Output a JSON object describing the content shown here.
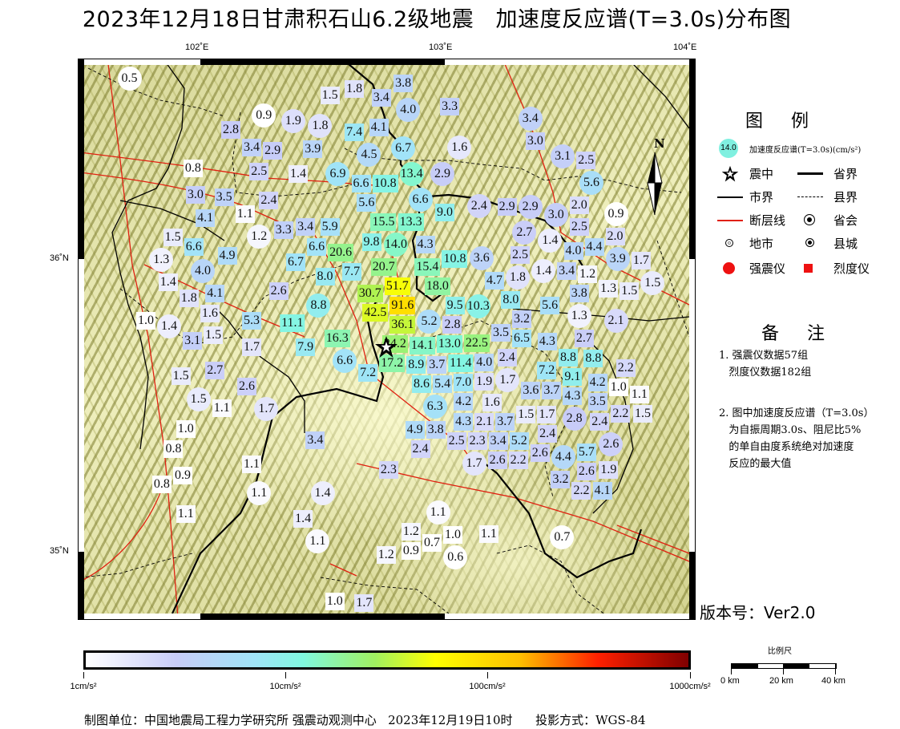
{
  "title": "2023年12月18日甘肃积石山6.2级地震   加速度反应谱(T=3.0s)分布图",
  "axes": {
    "lon_ticks": [
      "102˚E",
      "103˚E",
      "104˚E"
    ],
    "lat_ticks": [
      "36˚N",
      "35˚N"
    ]
  },
  "map": {
    "extent": {
      "lon": [
        101.5,
        104.03
      ],
      "lat": [
        34.77,
        36.69
      ]
    },
    "epicenter": {
      "lon": 102.76,
      "lat": 35.7
    },
    "stations": [
      [
        101.71,
        36.64,
        "0.5",
        "c"
      ],
      [
        102.26,
        36.49,
        "0.9",
        "c"
      ],
      [
        102.38,
        36.47,
        "1.9",
        "c"
      ],
      [
        102.49,
        36.45,
        "1.8",
        "c"
      ],
      [
        102.13,
        36.44,
        "2.8",
        "s"
      ],
      [
        102.21,
        36.38,
        "3.4",
        "s"
      ],
      [
        102.29,
        36.37,
        "2.9",
        "s"
      ],
      [
        102.46,
        36.38,
        "3.9",
        "s"
      ],
      [
        101.97,
        36.31,
        "0.8",
        "s"
      ],
      [
        102.24,
        36.3,
        "2.5",
        "s"
      ],
      [
        102.4,
        36.29,
        "1.4",
        "s"
      ],
      [
        101.98,
        36.22,
        "3.0",
        "s"
      ],
      [
        102.1,
        36.21,
        "3.5",
        "s"
      ],
      [
        102.28,
        36.2,
        "2.4",
        "s"
      ],
      [
        102.02,
        36.14,
        "4.1",
        "s"
      ],
      [
        102.18,
        36.15,
        "1.1",
        "s"
      ],
      [
        102.24,
        36.08,
        "1.2",
        "c"
      ],
      [
        102.34,
        36.1,
        "3.3",
        "s"
      ],
      [
        102.43,
        36.11,
        "3.4",
        "s"
      ],
      [
        101.9,
        36.06,
        "1.5",
        "s"
      ],
      [
        101.96,
        36.04,
        "6.6",
        "s"
      ],
      [
        101.84,
        36.0,
        "1.3",
        "c"
      ],
      [
        102.11,
        36.01,
        "4.9",
        "s"
      ],
      [
        102.53,
        36.56,
        "1.5",
        "s"
      ],
      [
        102.63,
        36.58,
        "1.8",
        "s"
      ],
      [
        102.83,
        36.6,
        "3.8",
        "s"
      ],
      [
        102.74,
        36.55,
        "3.4",
        "s"
      ],
      [
        102.85,
        36.51,
        "4.0",
        "c"
      ],
      [
        103.02,
        36.52,
        "3.3",
        "s"
      ],
      [
        102.63,
        36.43,
        "7.4",
        "s"
      ],
      [
        102.73,
        36.45,
        "4.1",
        "s"
      ],
      [
        102.69,
        36.36,
        "4.5",
        "c"
      ],
      [
        102.83,
        36.36,
        "6.7",
        "c"
      ],
      [
        102.84,
        36.31,
        "13.4",
        "c"
      ],
      [
        102.58,
        36.29,
        "6.9",
        "c"
      ],
      [
        102.67,
        36.24,
        "6.6",
        "s"
      ],
      [
        102.75,
        36.24,
        "10.8",
        "s"
      ],
      [
        102.68,
        36.19,
        "5.6",
        "s"
      ],
      [
        102.99,
        36.28,
        "2.9",
        "c"
      ],
      [
        102.9,
        36.19,
        "6.6",
        "c"
      ],
      [
        103.0,
        36.16,
        "9.0",
        "s"
      ],
      [
        103.06,
        36.38,
        "1.6",
        "c"
      ],
      [
        103.14,
        36.18,
        "2.4",
        "c"
      ],
      [
        102.76,
        36.12,
        "15.5",
        "s"
      ],
      [
        102.85,
        36.1,
        "13.3",
        "s"
      ],
      [
        102.7,
        36.08,
        "9.8",
        "s"
      ],
      [
        102.53,
        36.11,
        "5.9",
        "s"
      ],
      [
        102.48,
        36.04,
        "6.6",
        "s"
      ],
      [
        102.8,
        36.06,
        "14.0",
        "c"
      ],
      [
        102.92,
        36.05,
        "4.3",
        "s"
      ],
      [
        102.57,
        36.01,
        "20.6",
        "s"
      ],
      [
        102.75,
        35.99,
        "20.7",
        "s"
      ],
      [
        102.39,
        35.99,
        "6.7",
        "s"
      ],
      [
        102.62,
        35.97,
        "7.7",
        "s"
      ],
      [
        102.51,
        35.94,
        "8.0",
        "s"
      ],
      [
        102.8,
        35.94,
        "51.7",
        "s"
      ],
      [
        102.93,
        35.95,
        "15.4",
        "s"
      ],
      [
        102.97,
        35.92,
        "18.0",
        "s"
      ],
      [
        103.04,
        36.0,
        "10.8",
        "s"
      ],
      [
        103.15,
        35.99,
        "3.6",
        "c"
      ],
      [
        102.7,
        35.88,
        "30.7",
        "s"
      ],
      [
        102.48,
        35.84,
        "8.8",
        "c"
      ],
      [
        102.73,
        35.82,
        "42.5",
        "s"
      ],
      [
        102.83,
        35.8,
        "91.6",
        "s"
      ],
      [
        102.85,
        35.77,
        "36.1",
        "s"
      ],
      [
        102.94,
        35.77,
        "5.2",
        "c"
      ],
      [
        103.01,
        35.75,
        "2.8",
        "s"
      ],
      [
        103.05,
        35.82,
        "9.5",
        "s"
      ],
      [
        103.13,
        35.84,
        "10.3",
        "c"
      ],
      [
        102.38,
        35.78,
        "11.1",
        "s"
      ],
      [
        102.43,
        35.7,
        "7.9",
        "s"
      ],
      [
        102.56,
        35.72,
        "16.3",
        "s"
      ],
      [
        102.6,
        35.66,
        "6.6",
        "c"
      ],
      [
        102.69,
        35.61,
        "7.2",
        "s"
      ],
      [
        102.82,
        35.73,
        "24.2",
        "s"
      ],
      [
        102.84,
        35.68,
        "17.2",
        "s"
      ],
      [
        102.91,
        35.67,
        "14.1",
        "s"
      ],
      [
        102.88,
        35.63,
        "8.9",
        "s"
      ],
      [
        103.04,
        35.68,
        "13.0",
        "s"
      ],
      [
        103.11,
        35.71,
        "22.5",
        "s"
      ],
      [
        103.09,
        35.65,
        "11.4",
        "s"
      ],
      [
        103.01,
        35.62,
        "3.7",
        "s"
      ],
      [
        102.94,
        35.58,
        "8.6",
        "s"
      ],
      [
        103.06,
        35.58,
        "7.0",
        "s"
      ],
      [
        102.99,
        35.56,
        "5.4",
        "s"
      ],
      [
        103.15,
        35.62,
        "4.0",
        "s"
      ],
      [
        103.16,
        35.56,
        "1.9",
        "s"
      ],
      [
        103.21,
        35.74,
        "3.5",
        "s"
      ],
      [
        103.3,
        35.73,
        "6.5",
        "s"
      ],
      [
        103.28,
        35.78,
        "3.2",
        "s"
      ],
      [
        103.27,
        35.85,
        "8.0",
        "s"
      ],
      [
        103.25,
        35.68,
        "2.4",
        "s"
      ],
      [
        103.24,
        35.63,
        "1.7",
        "c"
      ],
      [
        103.43,
        35.84,
        "5.6",
        "s"
      ],
      [
        103.55,
        35.85,
        "3.8",
        "s"
      ],
      [
        103.55,
        35.77,
        "1.3",
        "c"
      ],
      [
        103.7,
        35.79,
        "2.1",
        "c"
      ],
      [
        103.43,
        35.71,
        "4.3",
        "s"
      ],
      [
        103.57,
        35.73,
        "2.7",
        "s"
      ],
      [
        103.57,
        35.69,
        "8.8",
        "s"
      ],
      [
        103.49,
        35.66,
        "8.8",
        "s"
      ],
      [
        103.44,
        35.62,
        "7.2",
        "s"
      ],
      [
        103.51,
        35.62,
        "9.1",
        "s"
      ],
      [
        103.74,
        35.62,
        "2.2",
        "s"
      ],
      [
        103.63,
        35.57,
        "4.2",
        "s"
      ],
      [
        103.72,
        35.57,
        "1.0",
        "s"
      ],
      [
        103.33,
        35.55,
        "3.6",
        "s"
      ],
      [
        103.42,
        35.55,
        "3.7",
        "s"
      ],
      [
        103.51,
        35.55,
        "4.3",
        "s"
      ],
      [
        103.63,
        35.52,
        "3.5",
        "s"
      ],
      [
        103.78,
        35.52,
        "1.1",
        "s"
      ],
      [
        103.81,
        35.49,
        "1.5",
        "s"
      ],
      [
        103.53,
        35.48,
        "2.8",
        "c"
      ],
      [
        103.34,
        35.46,
        "1.5",
        "s"
      ],
      [
        103.4,
        35.45,
        "1.7",
        "s"
      ],
      [
        103.71,
        35.47,
        "2.2",
        "s"
      ],
      [
        103.64,
        35.44,
        "2.4",
        "s"
      ],
      [
        103.42,
        35.41,
        "2.4",
        "s"
      ],
      [
        103.28,
        35.41,
        "5.2",
        "s"
      ],
      [
        103.22,
        35.45,
        "3.7",
        "s"
      ],
      [
        103.68,
        35.37,
        "2.6",
        "c"
      ],
      [
        103.22,
        35.37,
        "3.4",
        "s"
      ],
      [
        103.24,
        35.33,
        "2.6",
        "s"
      ],
      [
        103.31,
        35.32,
        "2.2",
        "s"
      ],
      [
        103.37,
        35.35,
        "2.6",
        "s"
      ],
      [
        103.44,
        35.31,
        "4.4",
        "c"
      ],
      [
        103.53,
        35.33,
        "5.7",
        "s"
      ],
      [
        103.49,
        35.26,
        "3.2",
        "s"
      ],
      [
        103.57,
        35.27,
        "2.6",
        "s"
      ],
      [
        103.67,
        35.28,
        "1.9",
        "s"
      ],
      [
        103.62,
        35.22,
        "4.1",
        "s"
      ],
      [
        103.57,
        35.21,
        "2.2",
        "s"
      ],
      [
        103.14,
        35.32,
        "1.7",
        "c"
      ],
      [
        103.19,
        35.52,
        "1.6",
        "s"
      ],
      [
        103.16,
        35.48,
        "2.1",
        "s"
      ],
      [
        102.96,
        35.49,
        "6.3",
        "c"
      ],
      [
        102.93,
        35.44,
        "4.9",
        "s"
      ],
      [
        102.99,
        35.44,
        "3.8",
        "s"
      ],
      [
        102.9,
        35.37,
        "2.4",
        "s"
      ],
      [
        103.08,
        35.4,
        "2.5",
        "s"
      ],
      [
        103.11,
        35.39,
        "2.3",
        "s"
      ],
      [
        103.07,
        35.52,
        "4.2",
        "s"
      ],
      [
        103.11,
        35.49,
        "4.3",
        "s"
      ],
      [
        103.35,
        36.47,
        "3.4",
        "c"
      ],
      [
        103.37,
        36.41,
        "3.0",
        "s"
      ],
      [
        103.5,
        36.35,
        "3.1",
        "c"
      ],
      [
        103.56,
        36.33,
        "2.5",
        "s"
      ],
      [
        103.6,
        36.26,
        "5.6",
        "c"
      ],
      [
        103.55,
        36.19,
        "2.0",
        "s"
      ],
      [
        103.27,
        36.17,
        "2.9",
        "s"
      ],
      [
        103.37,
        36.16,
        "2.9",
        "c"
      ],
      [
        103.43,
        36.15,
        "3.0",
        "c"
      ],
      [
        103.33,
        36.11,
        "2.7",
        "c"
      ],
      [
        103.54,
        36.11,
        "2.5",
        "s"
      ],
      [
        103.7,
        36.13,
        "0.9",
        "c"
      ],
      [
        103.67,
        36.08,
        "2.0",
        "s"
      ],
      [
        103.43,
        36.05,
        "1.4",
        "c"
      ],
      [
        103.63,
        36.04,
        "4.4",
        "s"
      ],
      [
        103.72,
        36.01,
        "3.9",
        "c"
      ],
      [
        103.79,
        35.99,
        "1.7",
        "s"
      ],
      [
        103.34,
        35.98,
        "2.5",
        "s"
      ],
      [
        103.41,
        35.96,
        "1.4",
        "c"
      ],
      [
        103.49,
        36.0,
        "3.4",
        "s"
      ],
      [
        103.53,
        36.0,
        "4.0",
        "s"
      ],
      [
        103.3,
        35.93,
        "1.8",
        "c"
      ],
      [
        103.23,
        35.91,
        "4.7",
        "s"
      ],
      [
        103.61,
        35.93,
        "1.2",
        "s"
      ],
      [
        103.66,
        35.9,
        "1.3",
        "s"
      ],
      [
        103.79,
        35.93,
        "1.5",
        "c"
      ],
      [
        103.74,
        35.89,
        "1.5",
        "s"
      ],
      [
        101.88,
        35.93,
        "1.4",
        "s"
      ],
      [
        102.01,
        35.94,
        "4.0",
        "c"
      ],
      [
        101.96,
        35.87,
        "1.8",
        "s"
      ],
      [
        102.06,
        35.88,
        "4.1",
        "s"
      ],
      [
        102.02,
        35.83,
        "1.6",
        "s"
      ],
      [
        102.32,
        35.89,
        "2.6",
        "s"
      ],
      [
        102.21,
        35.79,
        "5.3",
        "s"
      ],
      [
        101.8,
        35.79,
        "1.0",
        "s"
      ],
      [
        101.87,
        35.77,
        "1.4",
        "c"
      ],
      [
        101.96,
        35.72,
        "3.1",
        "s"
      ],
      [
        102.04,
        35.74,
        "1.5",
        "s"
      ],
      [
        102.21,
        35.7,
        "1.7",
        "s"
      ],
      [
        101.92,
        35.6,
        "1.5",
        "s"
      ],
      [
        102.06,
        35.62,
        "2.7",
        "s"
      ],
      [
        102.19,
        35.56,
        "2.6",
        "s"
      ],
      [
        102.0,
        35.52,
        "1.5",
        "c"
      ],
      [
        102.08,
        35.49,
        "1.1",
        "s"
      ],
      [
        102.27,
        35.49,
        "1.7",
        "c"
      ],
      [
        101.94,
        35.42,
        "1.0",
        "s"
      ],
      [
        101.89,
        35.35,
        "0.8",
        "s"
      ],
      [
        101.92,
        35.26,
        "0.9",
        "s"
      ],
      [
        101.85,
        35.23,
        "0.8",
        "s"
      ],
      [
        101.94,
        35.13,
        "1.1",
        "s"
      ],
      [
        102.47,
        35.38,
        "3.4",
        "s"
      ],
      [
        102.21,
        35.3,
        "1.1",
        "s"
      ],
      [
        102.24,
        35.2,
        "1.1",
        "c"
      ],
      [
        102.5,
        35.2,
        "1.4",
        "c"
      ],
      [
        102.42,
        35.11,
        "1.4",
        "s"
      ],
      [
        102.48,
        35.04,
        "1.1",
        "c"
      ],
      [
        102.55,
        34.83,
        "1.0",
        "s"
      ],
      [
        102.67,
        34.81,
        "1.7",
        "s"
      ],
      [
        102.77,
        35.28,
        "2.3",
        "s"
      ],
      [
        102.97,
        35.12,
        "1.1",
        "c"
      ],
      [
        102.88,
        35.06,
        "1.2",
        "s"
      ],
      [
        103.01,
        35.06,
        "1.0",
        "s"
      ],
      [
        102.94,
        35.03,
        "0.7",
        "s"
      ],
      [
        102.89,
        35.01,
        "0.9",
        "s"
      ],
      [
        103.03,
        34.99,
        "0.6",
        "c"
      ],
      [
        102.76,
        34.99,
        "1.2",
        "s"
      ],
      [
        103.18,
        35.06,
        "1.1",
        "s"
      ],
      [
        103.48,
        35.05,
        "0.7",
        "c"
      ]
    ],
    "north_label": "N"
  },
  "legend": {
    "title": "图 例",
    "sample_value": "14.0",
    "items": {
      "spectrum": "加速度反应谱(T=3.0s)(cm/s²)",
      "epicenter": "震中",
      "province_boundary": "省界",
      "city_boundary": "市界",
      "county_boundary": "县界",
      "fault": "断层线",
      "provincial_capital": "省会",
      "city": "地市",
      "county_town": "县城",
      "strong_motion": "强震仪",
      "intensity_meter": "烈度仪"
    }
  },
  "notes": {
    "title": "备 注",
    "note1": "1. 强震仪数据57组\n   烈度仪数据182组",
    "note2": "2. 图中加速度反应谱（T=3.0s）\n   为自振周期3.0s、阻尼比5%\n   的单自由度系统绝对加速度\n   反应的最大值"
  },
  "version": "版本号：Ver2.0",
  "colorbar": {
    "scale": "log",
    "range": [
      1,
      1000
    ],
    "labels": [
      "1cm/s²",
      "10cm/s²",
      "100cm/s²",
      "1000cm/s²"
    ],
    "colors": [
      "#ffffff",
      "#c8ccf8",
      "#a0e4f8",
      "#80f8e0",
      "#a0f060",
      "#ffff00",
      "#ffc000",
      "#ff2000",
      "#800000"
    ]
  },
  "scale_bar": {
    "title": "比例尺",
    "labels": [
      "0 km",
      "20 km",
      "40 km"
    ]
  },
  "footer": "制图单位：中国地震局工程力学研究所 强震动观测中心   2023年12月19日10时      投影方式：WGS-84",
  "colors": {
    "fault": "#e02010",
    "strong_motion": "#ee1111",
    "intensity_meter": "#ee1111"
  }
}
